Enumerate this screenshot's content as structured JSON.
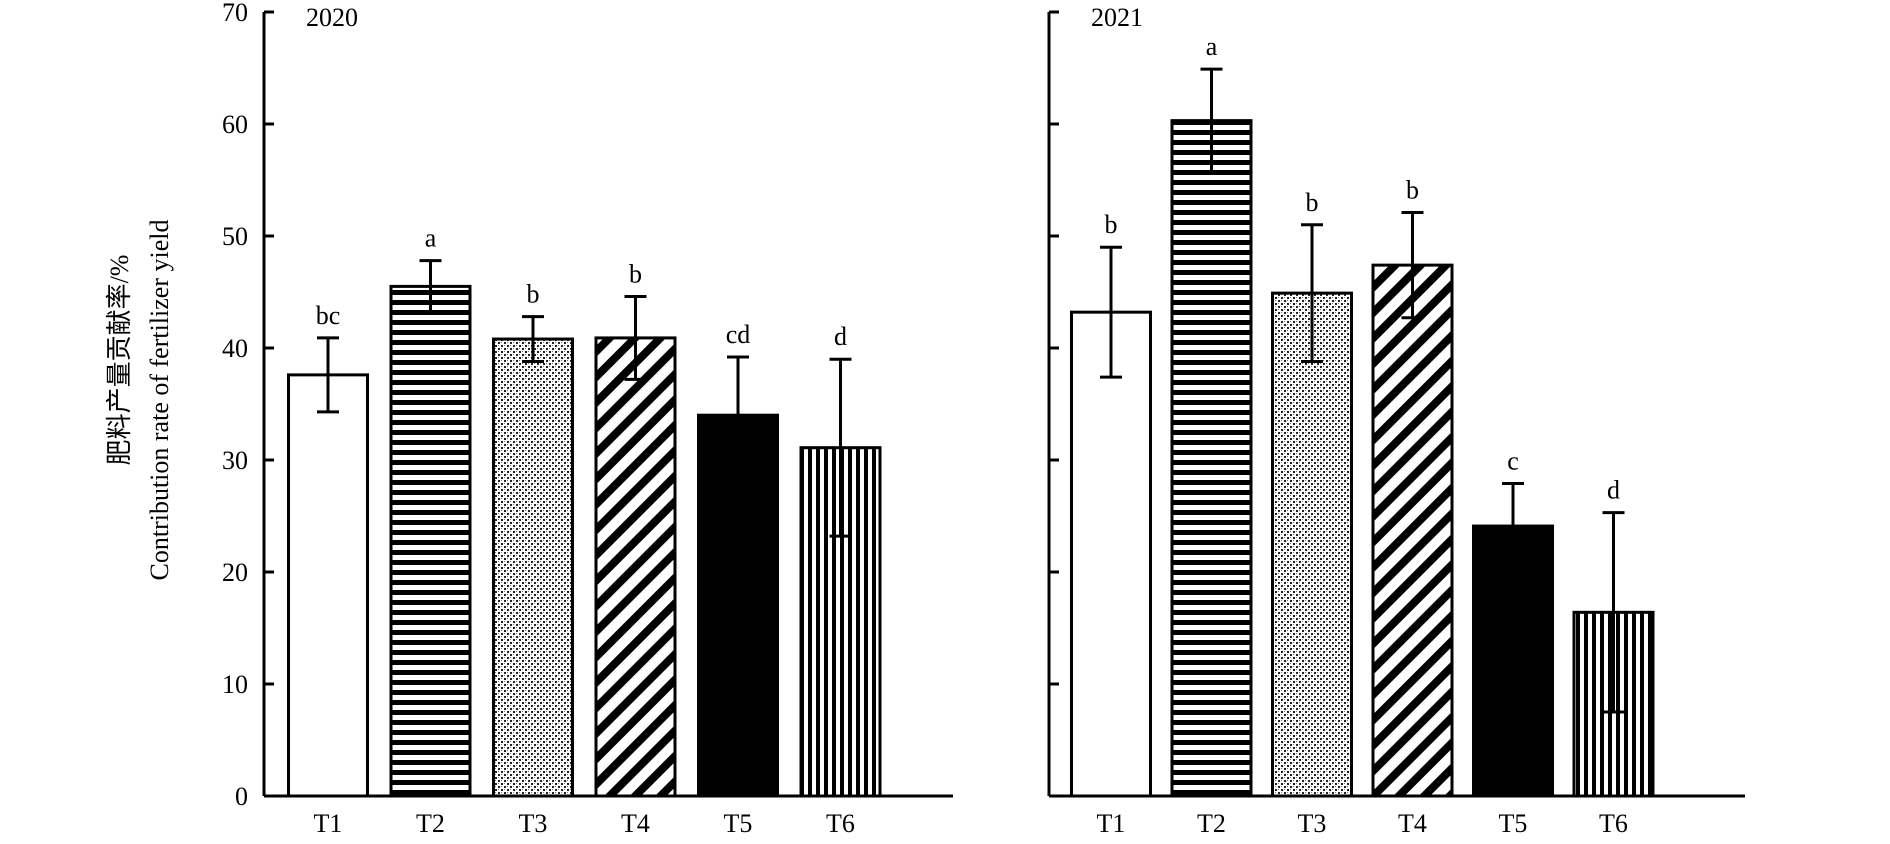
{
  "chart_data": {
    "type": "bar",
    "ylabel_cn": "肥料产量贡献率/%",
    "ylabel_en": "Contribution rate of fertilizer yield",
    "ylim": [
      0,
      70
    ],
    "yticks": [
      0,
      10,
      20,
      30,
      40,
      50,
      60,
      70
    ],
    "grid": false,
    "categories": [
      "T1",
      "T2",
      "T3",
      "T4",
      "T5",
      "T6"
    ],
    "patterns": [
      "none",
      "horizontal-lines",
      "dots",
      "diagonal-lines",
      "solid",
      "vertical-lines"
    ],
    "panels": [
      {
        "label": "2020",
        "values": [
          37.6,
          45.5,
          40.8,
          40.9,
          34.0,
          31.1
        ],
        "errors": [
          3.3,
          2.3,
          2.0,
          3.7,
          5.2,
          7.9
        ],
        "significance": [
          "bc",
          "a",
          "b",
          "b",
          "cd",
          "d"
        ]
      },
      {
        "label": "2021",
        "values": [
          43.2,
          60.3,
          44.9,
          47.4,
          24.1,
          16.4
        ],
        "errors": [
          5.8,
          4.6,
          6.1,
          4.7,
          3.8,
          8.9
        ],
        "significance": [
          "b",
          "a",
          "b",
          "b",
          "c",
          "d"
        ]
      }
    ]
  }
}
